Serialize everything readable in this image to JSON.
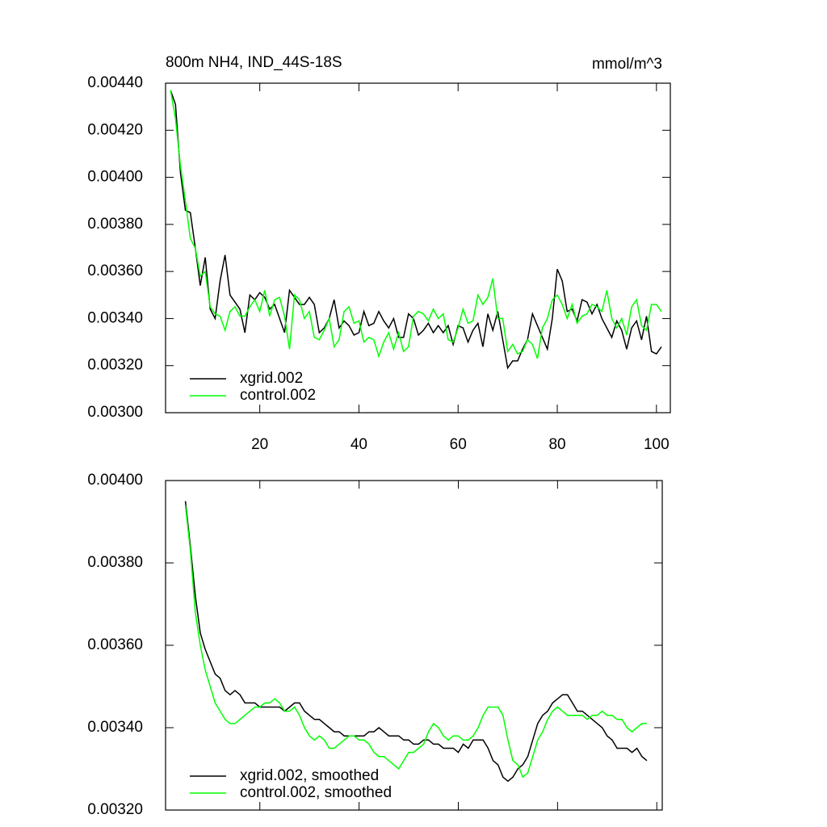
{
  "chart_data": [
    {
      "type": "line",
      "title": "800m NH4, IND_44S-18S",
      "subtitle": "mmol/m^3",
      "xlim": [
        1,
        102.8
      ],
      "xticks": [
        20,
        40,
        60,
        80,
        100
      ],
      "xtick_labels": true,
      "ylim": [
        0.003,
        0.0044
      ],
      "yticks": [
        {
          "value": 0.003,
          "label": "0.00300"
        },
        {
          "value": 0.0032,
          "label": "0.00320"
        },
        {
          "value": 0.0034,
          "label": "0.00340"
        },
        {
          "value": 0.0036,
          "label": "0.00360"
        },
        {
          "value": 0.0038,
          "label": "0.00380"
        },
        {
          "value": 0.004,
          "label": "0.00400"
        },
        {
          "value": 0.0042,
          "label": "0.00420"
        },
        {
          "value": 0.0044,
          "label": "0.00440"
        }
      ],
      "legend": "lower left",
      "x": [
        2,
        3,
        4,
        5,
        6,
        7,
        8,
        9,
        10,
        11,
        12,
        13,
        14,
        15,
        16,
        17,
        18,
        19,
        20,
        21,
        22,
        23,
        24,
        25,
        26,
        27,
        28,
        29,
        30,
        31,
        32,
        33,
        34,
        35,
        36,
        37,
        38,
        39,
        40,
        41,
        42,
        43,
        44,
        45,
        46,
        47,
        48,
        49,
        50,
        51,
        52,
        53,
        54,
        55,
        56,
        57,
        58,
        59,
        60,
        61,
        62,
        63,
        64,
        65,
        66,
        67,
        68,
        69,
        70,
        71,
        72,
        73,
        74,
        75,
        76,
        77,
        78,
        79,
        80,
        81,
        82,
        83,
        84,
        85,
        86,
        87,
        88,
        89,
        90,
        91,
        92,
        93,
        94,
        95,
        96,
        97,
        98,
        99,
        100,
        101
      ],
      "series": [
        {
          "name": "xgrid.002",
          "color": "#000000",
          "values": [
            0.00437,
            0.00431,
            0.00402,
            0.00386,
            0.00385,
            0.0037,
            0.00354,
            0.00366,
            0.00344,
            0.0034,
            0.00356,
            0.00367,
            0.0035,
            0.00347,
            0.00344,
            0.00334,
            0.0035,
            0.00348,
            0.00351,
            0.00349,
            0.00344,
            0.00346,
            0.0034,
            0.00334,
            0.00352,
            0.00349,
            0.00346,
            0.00346,
            0.00349,
            0.00346,
            0.00334,
            0.00336,
            0.0034,
            0.00348,
            0.00336,
            0.00339,
            0.00337,
            0.00333,
            0.00334,
            0.00343,
            0.00337,
            0.00338,
            0.00343,
            0.00339,
            0.00336,
            0.0034,
            0.00332,
            0.00332,
            0.00342,
            0.0034,
            0.00333,
            0.00335,
            0.00338,
            0.00334,
            0.00337,
            0.00334,
            0.00337,
            0.00329,
            0.00337,
            0.00336,
            0.0033,
            0.00335,
            0.00338,
            0.00328,
            0.00342,
            0.00335,
            0.00343,
            0.00331,
            0.00319,
            0.00322,
            0.00322,
            0.00327,
            0.00331,
            0.00342,
            0.00337,
            0.00332,
            0.00327,
            0.0034,
            0.00361,
            0.00356,
            0.00343,
            0.00344,
            0.00339,
            0.00348,
            0.00347,
            0.00342,
            0.00346,
            0.0034,
            0.00336,
            0.00332,
            0.00339,
            0.00335,
            0.00327,
            0.00336,
            0.00339,
            0.00331,
            0.00341,
            0.00326,
            0.00325,
            0.00328
          ]
        },
        {
          "name": "control.002",
          "color": "#00ff00",
          "values": [
            0.00437,
            0.00425,
            0.00405,
            0.0039,
            0.00374,
            0.0037,
            0.00358,
            0.0036,
            0.00345,
            0.00342,
            0.00341,
            0.00335,
            0.00343,
            0.00345,
            0.00341,
            0.00341,
            0.00345,
            0.00348,
            0.00343,
            0.00352,
            0.00341,
            0.00348,
            0.00349,
            0.00341,
            0.00327,
            0.0035,
            0.00348,
            0.0034,
            0.00343,
            0.00332,
            0.00331,
            0.00335,
            0.0034,
            0.00328,
            0.00331,
            0.00343,
            0.00345,
            0.00338,
            0.00339,
            0.0033,
            0.00332,
            0.00331,
            0.00324,
            0.0033,
            0.00334,
            0.00327,
            0.00334,
            0.00326,
            0.00328,
            0.00341,
            0.00343,
            0.00342,
            0.00339,
            0.00344,
            0.0034,
            0.00342,
            0.00331,
            0.0033,
            0.00336,
            0.00344,
            0.00338,
            0.00339,
            0.0035,
            0.00346,
            0.00349,
            0.00357,
            0.0034,
            0.0034,
            0.00326,
            0.00329,
            0.00325,
            0.00326,
            0.00331,
            0.00329,
            0.00323,
            0.00336,
            0.0034,
            0.00348,
            0.0035,
            0.00346,
            0.0034,
            0.00346,
            0.00338,
            0.00341,
            0.00342,
            0.00346,
            0.00345,
            0.00343,
            0.00352,
            0.0034,
            0.00336,
            0.0034,
            0.00333,
            0.00345,
            0.00348,
            0.00337,
            0.00335,
            0.00346,
            0.00346,
            0.00343
          ]
        }
      ]
    },
    {
      "type": "line",
      "xlim": [
        1,
        101.1
      ],
      "xticks": [
        20,
        40,
        60,
        80,
        100
      ],
      "xtick_labels": false,
      "ylim": [
        0.0032,
        0.004
      ],
      "yticks": [
        {
          "value": 0.0032,
          "label": "0.00320"
        },
        {
          "value": 0.0034,
          "label": "0.00340"
        },
        {
          "value": 0.0036,
          "label": "0.00360"
        },
        {
          "value": 0.0038,
          "label": "0.00380"
        },
        {
          "value": 0.004,
          "label": "0.00400"
        }
      ],
      "legend": "lower left",
      "x": [
        5,
        6,
        7,
        8,
        9,
        10,
        11,
        12,
        13,
        14,
        15,
        16,
        17,
        18,
        19,
        20,
        21,
        22,
        23,
        24,
        25,
        26,
        27,
        28,
        29,
        30,
        31,
        32,
        33,
        34,
        35,
        36,
        37,
        38,
        39,
        40,
        41,
        42,
        43,
        44,
        45,
        46,
        47,
        48,
        49,
        50,
        51,
        52,
        53,
        54,
        55,
        56,
        57,
        58,
        59,
        60,
        61,
        62,
        63,
        64,
        65,
        66,
        67,
        68,
        69,
        70,
        71,
        72,
        73,
        74,
        75,
        76,
        77,
        78,
        79,
        80,
        81,
        82,
        83,
        84,
        85,
        86,
        87,
        88,
        89,
        90,
        91,
        92,
        93,
        94,
        95,
        96,
        97,
        98
      ],
      "series": [
        {
          "name": "xgrid.002, smoothed",
          "color": "#000000",
          "values": [
            0.00395,
            0.00384,
            0.00372,
            0.00363,
            0.00359,
            0.00356,
            0.00353,
            0.00352,
            0.00349,
            0.00348,
            0.00349,
            0.00348,
            0.00346,
            0.00346,
            0.00346,
            0.00345,
            0.00345,
            0.00345,
            0.00345,
            0.00345,
            0.00344,
            0.00345,
            0.00346,
            0.00346,
            0.00344,
            0.00343,
            0.00342,
            0.00342,
            0.00341,
            0.0034,
            0.00339,
            0.00339,
            0.00338,
            0.00338,
            0.00338,
            0.00338,
            0.00338,
            0.00339,
            0.00339,
            0.0034,
            0.00339,
            0.00338,
            0.00338,
            0.00338,
            0.00337,
            0.00337,
            0.00336,
            0.00336,
            0.00337,
            0.00337,
            0.00336,
            0.00336,
            0.00335,
            0.00335,
            0.00335,
            0.00334,
            0.00336,
            0.00335,
            0.00337,
            0.00337,
            0.00337,
            0.00335,
            0.00332,
            0.00331,
            0.00328,
            0.00327,
            0.00328,
            0.0033,
            0.00331,
            0.00333,
            0.00337,
            0.00341,
            0.00343,
            0.00344,
            0.00346,
            0.00347,
            0.00348,
            0.00348,
            0.00346,
            0.00344,
            0.00344,
            0.00343,
            0.00342,
            0.00341,
            0.0034,
            0.00338,
            0.00337,
            0.00335,
            0.00335,
            0.00335,
            0.00334,
            0.00335,
            0.00333,
            0.00332
          ]
        },
        {
          "name": "control.002, smoothed",
          "color": "#00ff00",
          "values": [
            0.00394,
            0.00383,
            0.00368,
            0.0036,
            0.00354,
            0.0035,
            0.00346,
            0.00344,
            0.00342,
            0.00341,
            0.00341,
            0.00342,
            0.00343,
            0.00344,
            0.00345,
            0.00345,
            0.00346,
            0.00346,
            0.00347,
            0.00346,
            0.00344,
            0.00344,
            0.00345,
            0.00343,
            0.0034,
            0.00338,
            0.00337,
            0.00338,
            0.00337,
            0.00335,
            0.00335,
            0.00336,
            0.00337,
            0.00338,
            0.00338,
            0.00337,
            0.00337,
            0.00336,
            0.00334,
            0.00333,
            0.00333,
            0.00332,
            0.00331,
            0.0033,
            0.00332,
            0.00334,
            0.00334,
            0.00335,
            0.00336,
            0.00339,
            0.00341,
            0.0034,
            0.00338,
            0.00337,
            0.00338,
            0.00338,
            0.00337,
            0.00337,
            0.00338,
            0.0034,
            0.00343,
            0.00345,
            0.00345,
            0.00345,
            0.00343,
            0.00337,
            0.00332,
            0.00331,
            0.00328,
            0.00329,
            0.00333,
            0.00337,
            0.00339,
            0.00342,
            0.00344,
            0.00345,
            0.00344,
            0.00343,
            0.00343,
            0.00343,
            0.00343,
            0.00342,
            0.00343,
            0.00343,
            0.00344,
            0.00343,
            0.00343,
            0.00342,
            0.00342,
            0.0034,
            0.00339,
            0.0034,
            0.00341,
            0.00341
          ]
        }
      ]
    }
  ]
}
